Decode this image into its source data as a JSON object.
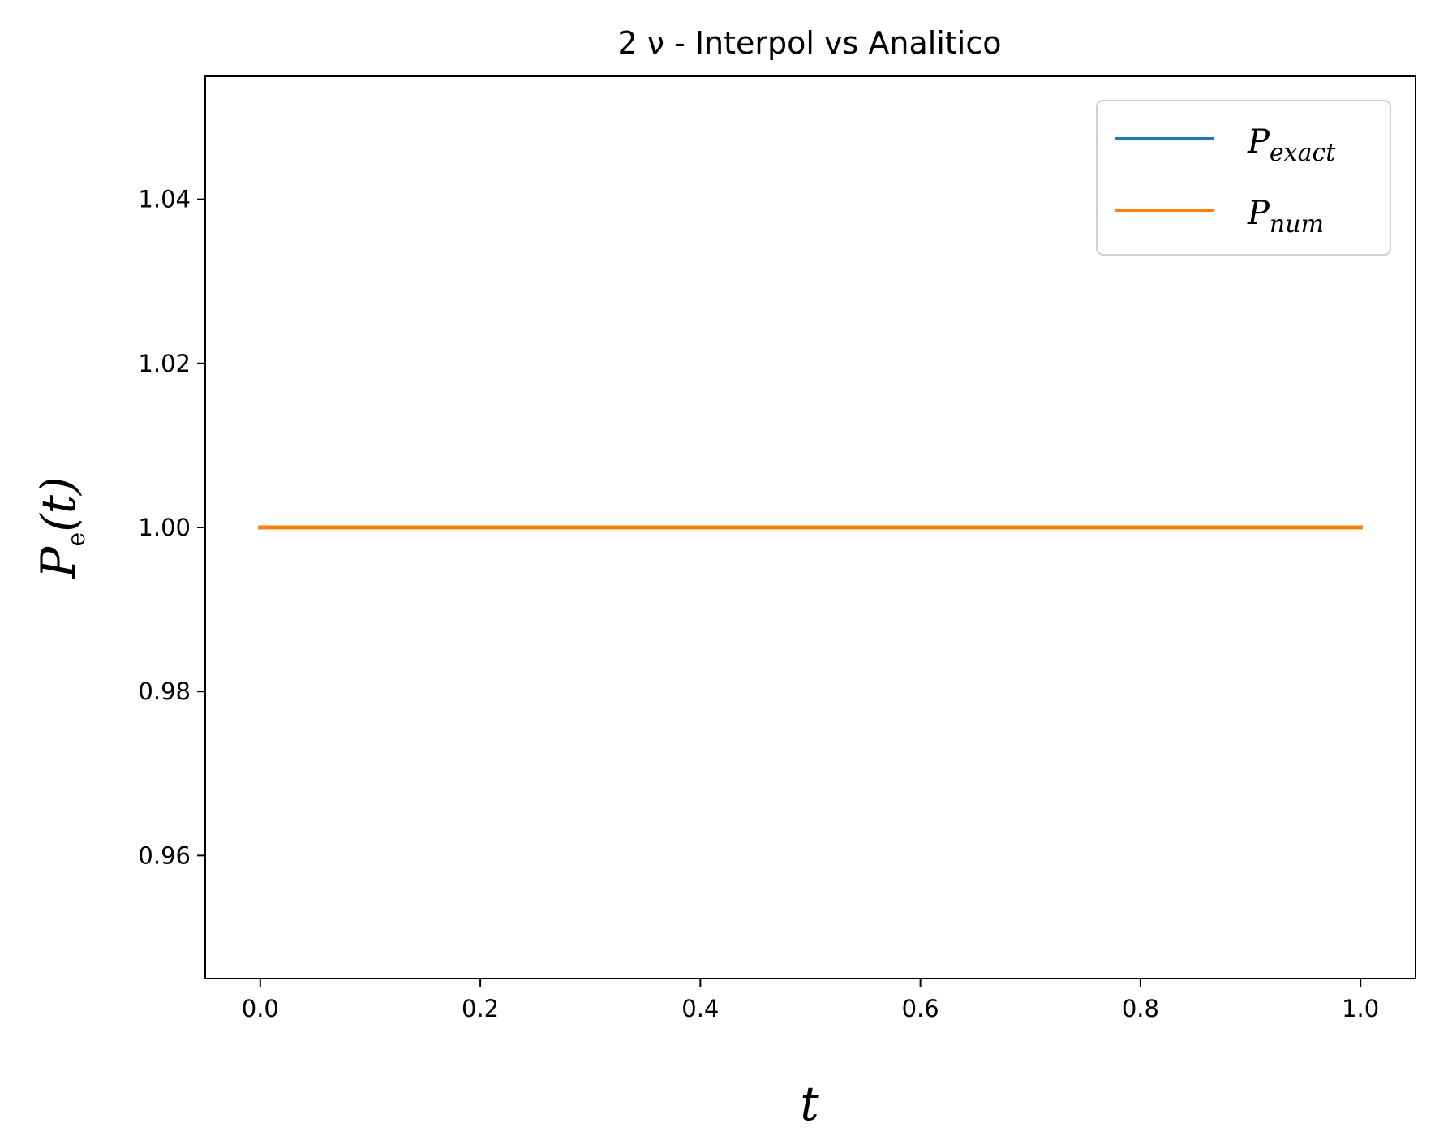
{
  "chart_data": {
    "type": "line",
    "title": "2 ν - Interpol vs Analitico",
    "xlabel": "t",
    "ylabel": {
      "base": "P",
      "sub": "e",
      "rest": "(t)"
    },
    "xlim": [
      -0.05,
      1.05
    ],
    "ylim": [
      0.945,
      1.055
    ],
    "xticks": [
      0.0,
      0.2,
      0.4,
      0.6,
      0.8,
      1.0
    ],
    "xtick_labels": [
      "0.0",
      "0.2",
      "0.4",
      "0.6",
      "0.8",
      "1.0"
    ],
    "yticks": [
      0.96,
      0.98,
      1.0,
      1.02,
      1.04
    ],
    "ytick_labels": [
      "0.96",
      "0.98",
      "1.00",
      "1.02",
      "1.04"
    ],
    "grid": false,
    "legend_position": "top-right",
    "series": [
      {
        "name": {
          "base": "P",
          "sub": "exact"
        },
        "color": "#1f77b4",
        "x": [
          0.0,
          1.0
        ],
        "y": [
          1.0,
          1.0
        ]
      },
      {
        "name": {
          "base": "P",
          "sub": "num"
        },
        "color": "#ff7f0e",
        "x": [
          0.0,
          1.0
        ],
        "y": [
          1.0,
          1.0
        ]
      }
    ]
  }
}
